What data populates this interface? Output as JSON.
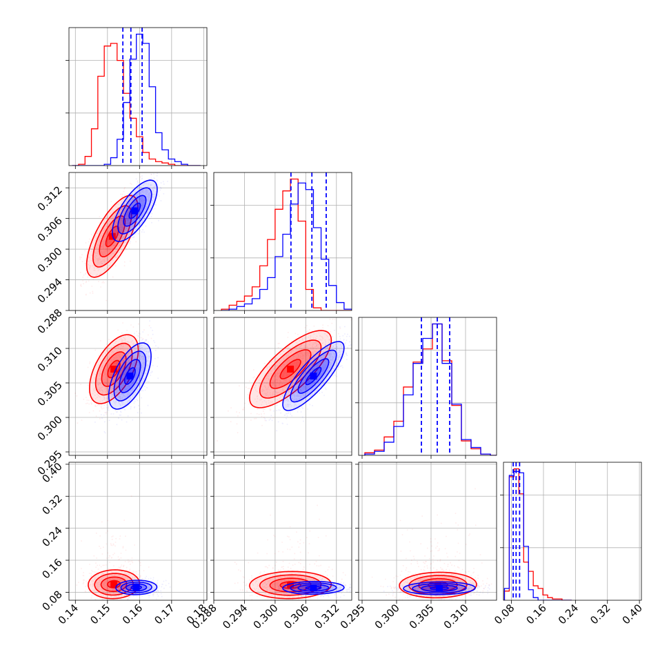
{
  "chart_data": {
    "type": "corner",
    "parameters": 4,
    "series": [
      {
        "name": "",
        "color": "#ff0000"
      },
      {
        "name": "",
        "color": "#0000ff"
      }
    ],
    "axes": [
      {
        "lim": [
          0.138,
          0.181
        ],
        "ticks": [
          0.14,
          0.15,
          0.16,
          0.17,
          0.18
        ],
        "tick_labels": [
          "0.14",
          "0.15",
          "0.16",
          "0.17",
          "0.18"
        ]
      },
      {
        "lim": [
          0.288,
          0.315
        ],
        "ticks": [
          0.288,
          0.294,
          0.3,
          0.306,
          0.312
        ],
        "tick_labels": [
          "0.288",
          "0.294",
          "0.300",
          "0.306",
          "0.312"
        ]
      },
      {
        "lim": [
          0.2945,
          0.3145
        ],
        "ticks": [
          0.295,
          0.3,
          0.305,
          0.31
        ],
        "tick_labels": [
          "0.295",
          "0.300",
          "0.305",
          "0.310"
        ]
      },
      {
        "lim": [
          0.06,
          0.405
        ],
        "ticks": [
          0.08,
          0.16,
          0.24,
          0.32,
          0.4
        ],
        "tick_labels": [
          "0.08",
          "0.16",
          "0.24",
          "0.32",
          "0.40"
        ]
      }
    ],
    "histograms": [
      {
        "param": 0,
        "edges": [
          0.139,
          0.141,
          0.143,
          0.145,
          0.147,
          0.149,
          0.151,
          0.153,
          0.155,
          0.157,
          0.159,
          0.161,
          0.163,
          0.165,
          0.167,
          0.169,
          0.171,
          0.173,
          0.175,
          0.177,
          0.179
        ],
        "red": [
          0,
          0.01,
          0.07,
          0.28,
          0.68,
          0.91,
          0.93,
          0.8,
          0.55,
          0.36,
          0.22,
          0.1,
          0.05,
          0.03,
          0.02,
          0.01,
          0,
          0,
          0,
          0
        ],
        "blue": [
          0,
          0,
          0,
          0,
          0,
          0.01,
          0.06,
          0.2,
          0.48,
          0.81,
          1.0,
          0.93,
          0.6,
          0.25,
          0.12,
          0.05,
          0.03,
          0.01,
          0,
          0
        ],
        "quantiles": [
          0.1548,
          0.1573,
          0.1608
        ]
      },
      {
        "param": 1,
        "edges": [
          0.2895,
          0.291,
          0.2925,
          0.294,
          0.2955,
          0.297,
          0.2985,
          0.3,
          0.3015,
          0.303,
          0.3045,
          0.306,
          0.3075,
          0.309,
          0.3105,
          0.312,
          0.3135,
          0.315
        ],
        "red": [
          0.01,
          0.04,
          0.07,
          0.11,
          0.18,
          0.34,
          0.54,
          0.77,
          0.91,
          1.0,
          0.68,
          0.16,
          0.02,
          0,
          0,
          0,
          0
        ],
        "blue": [
          0,
          0.01,
          0.03,
          0.05,
          0.09,
          0.16,
          0.25,
          0.41,
          0.58,
          0.81,
          0.97,
          0.92,
          0.63,
          0.39,
          0.19,
          0.06,
          0.01
        ],
        "quantiles": [
          0.3031,
          0.3072,
          0.31
        ]
      },
      {
        "param": 2,
        "edges": [
          0.2954,
          0.2968,
          0.2982,
          0.2996,
          0.301,
          0.3024,
          0.3038,
          0.3052,
          0.3066,
          0.308,
          0.3094,
          0.3108,
          0.3122,
          0.3136,
          0.315
        ],
        "red": [
          0.02,
          0.04,
          0.14,
          0.26,
          0.52,
          0.71,
          0.81,
          1.0,
          0.72,
          0.38,
          0.11,
          0.05,
          0.01,
          0
        ],
        "blue": [
          0.01,
          0.03,
          0.1,
          0.22,
          0.46,
          0.7,
          0.89,
          1.0,
          0.7,
          0.39,
          0.12,
          0.06,
          0.01,
          0
        ],
        "quantiles": [
          0.3036,
          0.3059,
          0.3077
        ]
      },
      {
        "param": 3,
        "edges": [
          0.0625,
          0.0745,
          0.0865,
          0.0985,
          0.1105,
          0.1225,
          0.1345,
          0.1465,
          0.1585,
          0.1705,
          0.1825,
          0.1945,
          0.2065,
          0.2185,
          0.2305
        ],
        "red": [
          0.07,
          0.94,
          1.0,
          0.81,
          0.29,
          0.22,
          0.11,
          0.09,
          0.04,
          0.02,
          0.01,
          0.01,
          0,
          0
        ],
        "blue": [
          0.09,
          0.95,
          0.98,
          0.97,
          0.41,
          0.08,
          0.02,
          0,
          0,
          0,
          0,
          0,
          0,
          0
        ],
        "quantiles": [
          0.0843,
          0.0916,
          0.1003
        ]
      }
    ],
    "pairs": [
      {
        "x": 0,
        "y": 1,
        "red": {
          "mean": [
            0.1515,
            0.3025
          ],
          "sd": [
            0.004,
            0.004
          ],
          "rho": 0.7
        },
        "blue": {
          "mean": [
            0.1585,
            0.3075
          ],
          "sd": [
            0.0035,
            0.003
          ],
          "rho": 0.7
        }
      },
      {
        "x": 0,
        "y": 2,
        "red": {
          "mean": [
            0.152,
            0.307
          ],
          "sd": [
            0.0038,
            0.0025
          ],
          "rho": 0.55
        },
        "blue": {
          "mean": [
            0.157,
            0.306
          ],
          "sd": [
            0.0033,
            0.0024
          ],
          "rho": 0.6
        }
      },
      {
        "x": 1,
        "y": 2,
        "red": {
          "mean": [
            0.303,
            0.307
          ],
          "sd": [
            0.004,
            0.0028
          ],
          "rho": 0.75
        },
        "blue": {
          "mean": [
            0.3075,
            0.306
          ],
          "sd": [
            0.003,
            0.0025
          ],
          "rho": 0.82
        }
      },
      {
        "x": 0,
        "y": 3,
        "red": {
          "mean": [
            0.152,
            0.1
          ],
          "sd": [
            0.004,
            0.018
          ],
          "rho": 0.05
        },
        "blue": {
          "mean": [
            0.159,
            0.092
          ],
          "sd": [
            0.0032,
            0.009
          ],
          "rho": 0.05
        }
      },
      {
        "x": 1,
        "y": 3,
        "red": {
          "mean": [
            0.303,
            0.098
          ],
          "sd": [
            0.004,
            0.017
          ],
          "rho": 0.05
        },
        "blue": {
          "mean": [
            0.3075,
            0.091
          ],
          "sd": [
            0.003,
            0.008
          ],
          "rho": 0.05
        }
      },
      {
        "x": 2,
        "y": 3,
        "red": {
          "mean": [
            0.306,
            0.098
          ],
          "sd": [
            0.0028,
            0.016
          ],
          "rho": 0.05
        },
        "blue": {
          "mean": [
            0.3062,
            0.09
          ],
          "sd": [
            0.0026,
            0.008
          ],
          "rho": 0.05
        }
      }
    ],
    "contour_levels_sigma": [
      0.5,
      1.0,
      1.5,
      2.0
    ],
    "grid": true
  }
}
